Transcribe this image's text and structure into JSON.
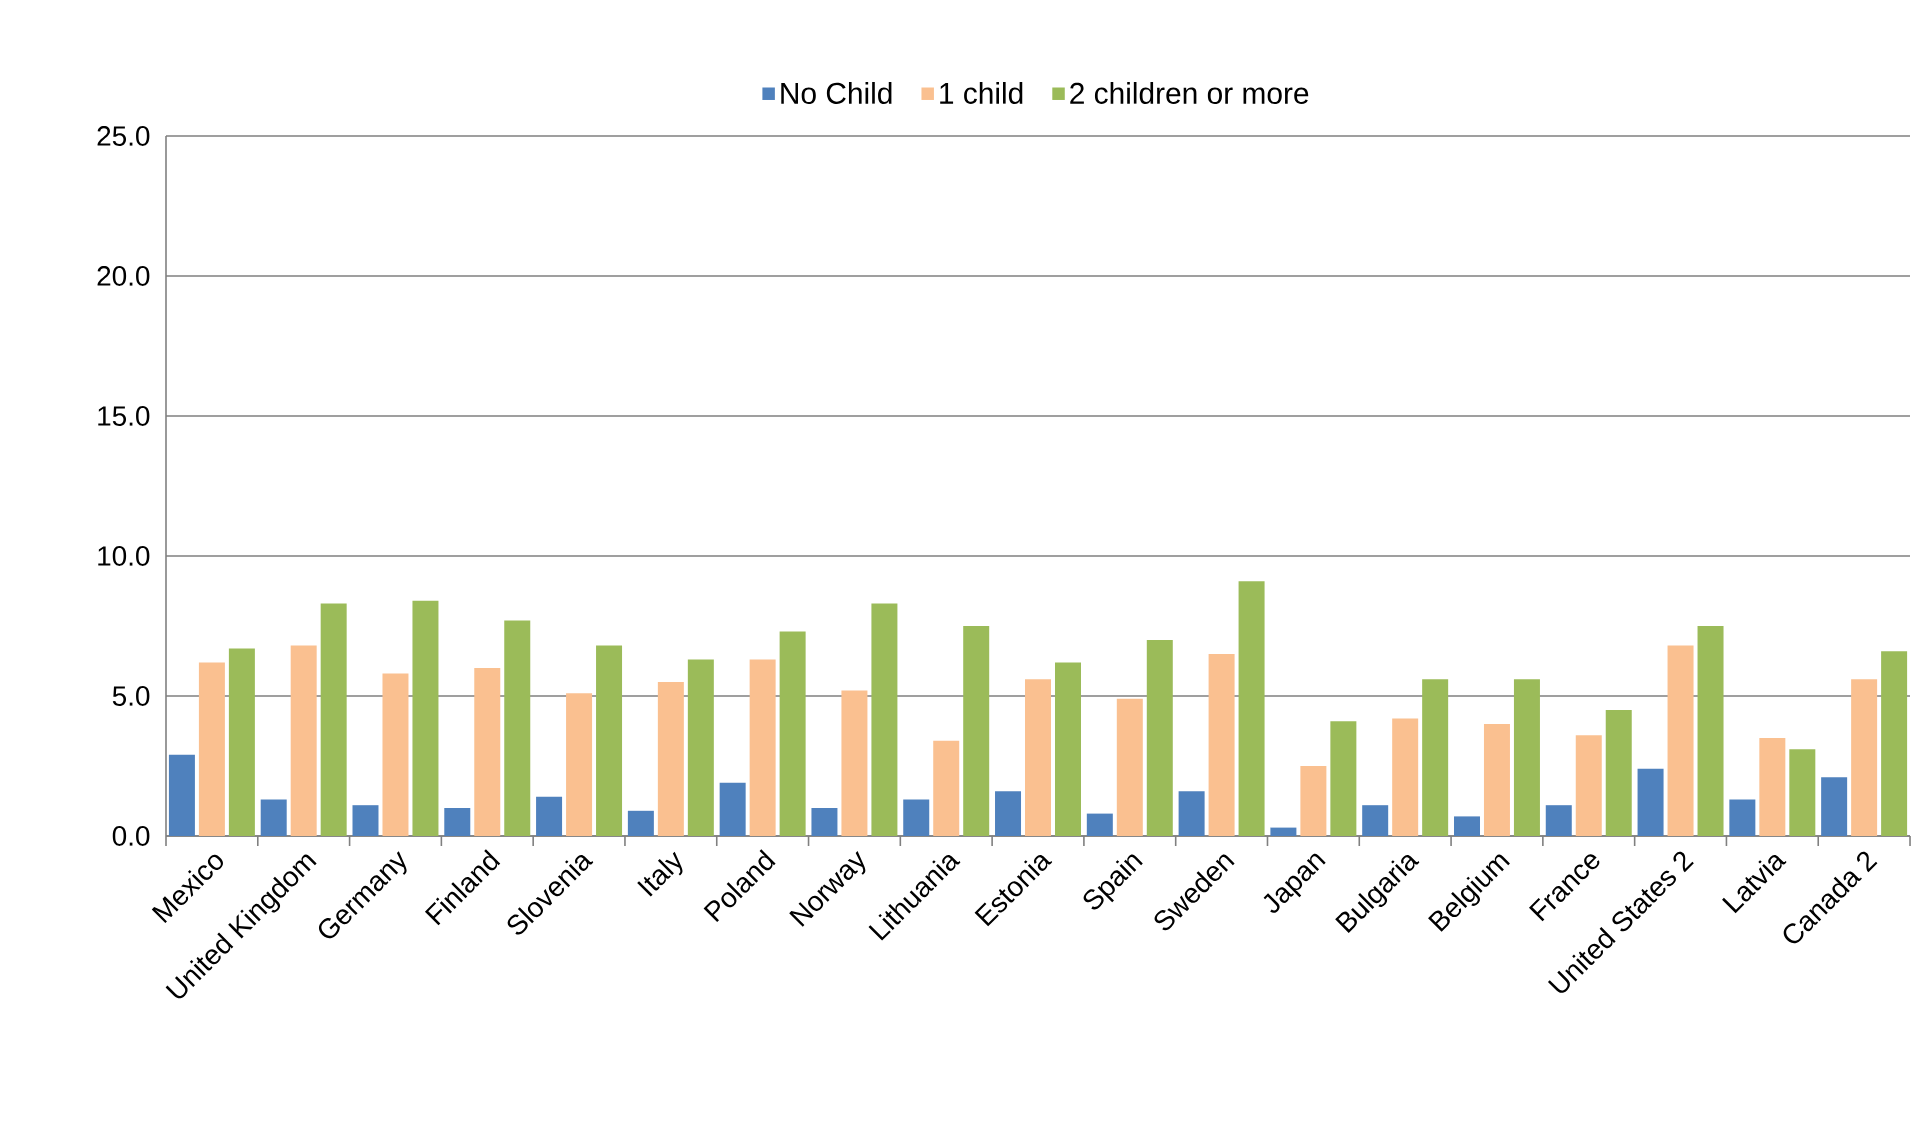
{
  "chart_data": {
    "type": "bar",
    "categories": [
      "Mexico",
      "United Kingdom",
      "Germany",
      "Finland",
      "Slovenia",
      "Italy",
      "Poland",
      "Norway",
      "Lithuania",
      "Estonia",
      "Spain",
      "Sweden",
      "Japan",
      "Bulgaria",
      "Belgium",
      "France",
      "United States 2",
      "Latvia",
      "Canada 2"
    ],
    "series": [
      {
        "name": "No Child",
        "color": "#4f81bd",
        "values": [
          2.9,
          1.3,
          1.1,
          1.0,
          1.4,
          0.9,
          1.9,
          1.0,
          1.3,
          1.6,
          0.8,
          1.6,
          0.3,
          1.1,
          0.7,
          1.1,
          2.4,
          1.3,
          2.1
        ]
      },
      {
        "name": "1 child",
        "color": "#fac090",
        "values": [
          6.2,
          6.8,
          5.8,
          6.0,
          5.1,
          5.5,
          6.3,
          5.2,
          3.4,
          5.6,
          4.9,
          6.5,
          2.5,
          4.2,
          4.0,
          3.6,
          6.8,
          3.5,
          5.6
        ]
      },
      {
        "name": "2 children or more",
        "color": "#9bbb59",
        "values": [
          6.7,
          8.3,
          8.4,
          7.7,
          6.8,
          6.3,
          7.3,
          8.3,
          7.5,
          6.2,
          7.0,
          9.1,
          4.1,
          5.6,
          5.6,
          4.5,
          7.5,
          3.1,
          6.6
        ]
      }
    ],
    "ylim": [
      0,
      25
    ],
    "yticks": [
      {
        "value": 0,
        "label": "0.0"
      },
      {
        "value": 5,
        "label": "5.0"
      },
      {
        "value": 10,
        "label": "10.0"
      },
      {
        "value": 15,
        "label": "15.0"
      },
      {
        "value": 20,
        "label": "20.0"
      },
      {
        "value": 25,
        "label": "25.0"
      }
    ],
    "grid": "y",
    "legend": "top"
  }
}
